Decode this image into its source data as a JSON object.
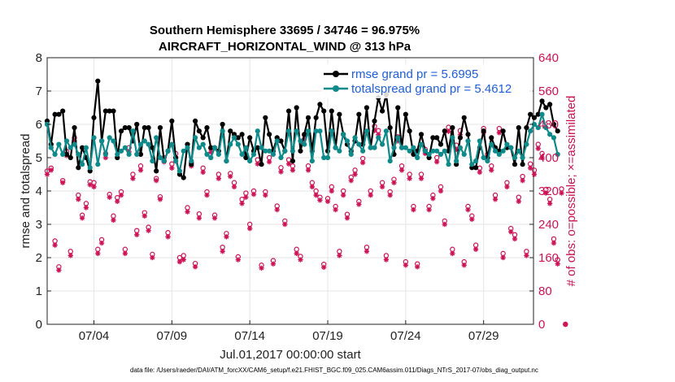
{
  "colors": {
    "rmse": "#000000",
    "spread": "#0e8a8a",
    "obs": "#cc1155",
    "legend_text": "#1f5fd6",
    "grid": "#e6e6e6"
  },
  "chart_data": {
    "type": "line",
    "title_line1": "Southern Hemisphere 33695 / 34746 = 96.975%",
    "title_line2": "AIRCRAFT_HORIZONTAL_WIND @ 313 hPa",
    "xlabel": "Jul.01,2017 00:00:00 start",
    "ylabel": "rmse and totalspread",
    "y2label": "# of obs: o=possible; ×=assimilated",
    "xlim": [
      1,
      32.2
    ],
    "ylim": [
      0,
      8
    ],
    "y2lim": [
      0,
      640
    ],
    "x_ticks": [
      4,
      9,
      14,
      19,
      24,
      29
    ],
    "x_tick_labels": [
      "07/04",
      "07/09",
      "07/14",
      "07/19",
      "07/24",
      "07/29"
    ],
    "y_ticks": [
      0,
      1,
      2,
      3,
      4,
      5,
      6,
      7,
      8
    ],
    "y2_ticks": [
      0,
      80,
      160,
      240,
      320,
      400,
      480,
      560,
      640
    ],
    "legend": [
      {
        "label": "rmse grand pr = 5.6995",
        "series": "rmse"
      },
      {
        "label": "totalspread grand pr = 5.4612",
        "series": "totalspread"
      }
    ],
    "footnote": "data file: /Users/raeder/DAI/ATM_forcXX/CAM6_setup/f.e21.FHIST_BGC.f09_025.CAM6assim.011/Diags_NTrS_2017-07/obs_diag_output.nc",
    "x_start": 1.0,
    "x_step": 0.25,
    "series": [
      {
        "name": "rmse",
        "values": [
          6.1,
          5.4,
          6.3,
          6.3,
          6.4,
          5.1,
          5.0,
          5.9,
          4.7,
          5.3,
          5.0,
          4.6,
          6.2,
          7.3,
          5.5,
          6.4,
          6.4,
          6.4,
          5.0,
          5.8,
          5.9,
          5.9,
          5.5,
          6.0,
          5.1,
          5.9,
          5.9,
          5.3,
          4.6,
          5.9,
          4.9,
          5.2,
          6.1,
          5.0,
          4.5,
          4.4,
          5.4,
          4.8,
          6.1,
          5.8,
          5.6,
          5.9,
          5.3,
          5.3,
          5.2,
          6.0,
          4.9,
          5.8,
          5.7,
          5.6,
          5.7,
          5.0,
          5.6,
          5.2,
          5.3,
          4.8,
          6.2,
          5.7,
          5.2,
          5.6,
          5.5,
          5.2,
          6.4,
          4.9,
          6.5,
          5.2,
          5.7,
          6.2,
          5.2,
          6.2,
          6.6,
          6.4,
          5.2,
          6.4,
          5.3,
          6.3,
          5.7,
          5.4,
          5.2,
          5.5,
          6.3,
          5.4,
          6.5,
          5.3,
          6.1,
          6.8,
          6.4,
          6.9,
          5.9,
          5.1,
          6.5,
          5.3,
          6.3,
          5.8,
          5.1,
          5.2,
          5.7,
          5.2,
          5.0,
          5.6,
          5.6,
          5.4,
          5.8,
          5.2,
          5.9,
          4.8,
          5.6,
          6.2,
          5.7,
          4.7,
          4.7,
          5.3,
          5.8,
          5.0,
          5.6,
          5.3,
          5.2,
          5.8,
          5.3,
          5.3,
          4.8,
          5.9,
          4.8,
          5.9,
          6.3,
          6.2,
          6.3,
          6.7,
          6.5,
          6.6,
          6.0,
          5.8
        ]
      },
      {
        "name": "totalspread",
        "values": [
          6.0,
          5.3,
          5.1,
          5.4,
          5.1,
          5.5,
          5.3,
          5.4,
          5.1,
          4.8,
          5.3,
          4.7,
          5.6,
          4.8,
          5.5,
          5.1,
          5.6,
          5.5,
          5.1,
          5.2,
          5.3,
          5.1,
          5.8,
          5.1,
          5.4,
          5.5,
          5.4,
          4.9,
          5.6,
          5.0,
          4.9,
          5.2,
          5.4,
          4.9,
          4.6,
          5.2,
          5.3,
          4.9,
          5.6,
          5.3,
          5.4,
          5.1,
          5.0,
          5.3,
          5.1,
          5.8,
          4.9,
          5.4,
          5.6,
          5.4,
          5.1,
          5.3,
          4.9,
          5.1,
          5.8,
          5.3,
          5.2,
          5.2,
          5.1,
          5.5,
          5.0,
          5.2,
          5.8,
          5.2,
          5.8,
          5.5,
          5.4,
          5.8,
          4.9,
          5.8,
          5.8,
          5.0,
          5.0,
          5.8,
          5.3,
          5.2,
          5.7,
          5.5,
          5.1,
          5.6,
          5.4,
          5.2,
          5.8,
          5.3,
          5.3,
          5.6,
          5.4,
          5.8,
          4.9,
          5.3,
          5.6,
          5.3,
          5.3,
          5.2,
          5.3,
          5.0,
          5.4,
          5.2,
          5.1,
          5.2,
          5.2,
          5.1,
          5.2,
          4.8,
          5.6,
          4.9,
          5.3,
          5.1,
          5.5,
          4.8,
          4.9,
          5.5,
          5.0,
          4.9,
          5.4,
          5.2,
          5.1,
          5.2,
          5.4,
          5.3,
          5.0,
          5.2,
          5.0,
          5.4,
          5.8,
          6.0,
          5.9,
          6.3,
          5.9,
          5.7,
          5.6,
          5.1
        ]
      },
      {
        "name": "obs_possible",
        "axis": "right",
        "values": [
          368,
          375,
          200,
          138,
          345,
          415,
          175,
          448,
          310,
          262,
          290,
          342,
          340,
          180,
          203,
          410,
          312,
          260,
          304,
          318,
          180,
          424,
          360,
          225,
          380,
          268,
          233,
          168,
          350,
          306,
          400,
          220,
          385,
          410,
          160,
          165,
          280,
          388,
          146,
          265,
          375,
          318,
          423,
          262,
          360,
          185,
          218,
          362,
          340,
          162,
          300,
          315,
          240,
          320,
          395,
          142,
          318,
          400,
          153,
          284,
          376,
          248,
          395,
          380,
          180,
          163,
          455,
          380,
          340,
          320,
          305,
          144,
          302,
          330,
          283,
          175,
          320,
          264,
          353,
          370,
          295,
          398,
          185,
          320,
          475,
          465,
          340,
          165,
          318,
          348,
          450,
          380,
          150,
          360,
          283,
          145,
          360,
          420,
          283,
          310,
          400,
          330,
          248,
          473,
          180,
          430,
          465,
          150,
          283,
          260,
          190,
          375,
          470,
          408,
          380,
          310,
          470,
          170,
          340,
          230,
          215,
          305,
          355,
          175,
          385,
          370,
          432,
          410,
          324,
          300,
          205,
          155,
          325,
          0
        ]
      },
      {
        "name": "obs_assimilated",
        "axis": "right",
        "values": [
          360,
          370,
          190,
          130,
          340,
          405,
          165,
          440,
          300,
          255,
          280,
          335,
          330,
          170,
          195,
          400,
          305,
          250,
          295,
          310,
          170,
          414,
          350,
          215,
          370,
          260,
          225,
          160,
          345,
          300,
          390,
          210,
          375,
          400,
          150,
          155,
          270,
          380,
          138,
          255,
          365,
          310,
          413,
          255,
          350,
          175,
          210,
          355,
          330,
          155,
          290,
          305,
          230,
          312,
          385,
          135,
          310,
          390,
          145,
          275,
          366,
          240,
          385,
          370,
          170,
          155,
          445,
          370,
          330,
          310,
          298,
          137,
          295,
          320,
          275,
          165,
          310,
          255,
          345,
          360,
          288,
          388,
          175,
          310,
          465,
          455,
          330,
          155,
          310,
          340,
          440,
          370,
          142,
          350,
          275,
          138,
          350,
          410,
          275,
          302,
          390,
          320,
          240,
          463,
          170,
          420,
          455,
          142,
          275,
          252,
          180,
          365,
          460,
          398,
          370,
          300,
          460,
          160,
          330,
          222,
          205,
          295,
          345,
          165,
          375,
          360,
          422,
          400,
          315,
          290,
          195,
          145,
          315,
          0
        ]
      }
    ]
  }
}
